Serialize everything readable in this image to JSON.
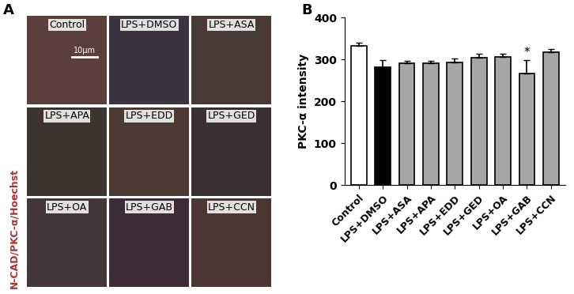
{
  "panel_labels": [
    "A",
    "B"
  ],
  "image_panel": {
    "channel_label": "N-CAD/PKC-α/Hoechst",
    "scale_bar": "10μm",
    "tiles": [
      "Control",
      "LPS+DMSO",
      "LPS+ASA",
      "LPS+APA",
      "LPS+EDD",
      "LPS+GED",
      "LPS+OA",
      "LPS+GAB",
      "LPS+CCN"
    ]
  },
  "chart_data": {
    "type": "bar",
    "y_label": "PKC-α intensity",
    "categories": [
      "Control",
      "LPS+DMSO",
      "LPS+ASA",
      "LPS+APA",
      "LPS+EDD",
      "LPS+GED",
      "LPS+OA",
      "LPS+GAB",
      "LPS+CCN"
    ],
    "values": [
      333,
      281,
      291,
      291,
      293,
      304,
      307,
      266,
      317
    ],
    "errors": [
      8,
      17,
      5,
      6,
      9,
      9,
      6,
      33,
      9
    ],
    "colors": [
      "#ffffff",
      "#000000",
      "#a6a6a6",
      "#a6a6a6",
      "#a6a6a6",
      "#a6a6a6",
      "#a6a6a6",
      "#a6a6a6",
      "#a6a6a6"
    ],
    "ylim": [
      0,
      400
    ],
    "yticks": [
      0,
      100,
      200,
      300,
      400
    ],
    "annotations": [
      {
        "category": "LPS+GAB",
        "text": "*"
      }
    ]
  }
}
